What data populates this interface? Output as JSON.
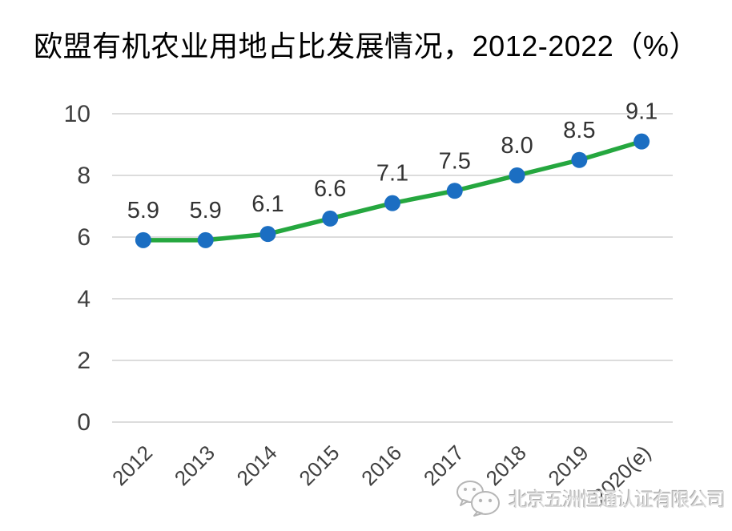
{
  "title": {
    "text": "欧盟有机农业用地占比发展情况，2012-2022（%）"
  },
  "chart_data": {
    "type": "line",
    "title": "欧盟有机农业用地占比发展情况，2012-2022（%）",
    "categories": [
      "2012",
      "2013",
      "2014",
      "2015",
      "2016",
      "2017",
      "2018",
      "2019",
      "2020(e)"
    ],
    "values": [
      5.9,
      5.9,
      6.1,
      6.6,
      7.1,
      7.5,
      8.0,
      8.5,
      9.1
    ],
    "data_labels": [
      "5.9",
      "5.9",
      "6.1",
      "6.6",
      "7.1",
      "7.5",
      "8.0",
      "8.5",
      "9.1"
    ],
    "xlabel": "",
    "ylabel": "",
    "ylim": [
      0,
      10
    ],
    "yticks": [
      0,
      2,
      4,
      6,
      8,
      10
    ],
    "grid": true,
    "legend": "none",
    "colors": {
      "line": "#25a73f",
      "marker": "#1b6ec2",
      "gridline": "#dcdcdc",
      "tick_text": "#404040",
      "data_label_text": "#333333",
      "title_text": "#000000"
    }
  },
  "watermark": {
    "icon": "wechat-icon",
    "text": "北京五洲恒通认证有限公司"
  }
}
